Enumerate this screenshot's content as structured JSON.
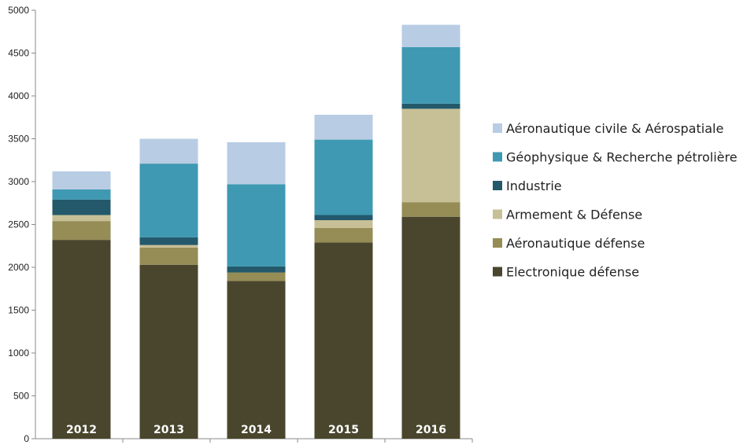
{
  "chart_data": {
    "type": "bar",
    "stacked": true,
    "categories": [
      "2012",
      "2013",
      "2014",
      "2015",
      "2016"
    ],
    "ylim": [
      0,
      5000
    ],
    "yticks": [
      "0",
      "500",
      "1000",
      "1500",
      "2000",
      "2500",
      "3000",
      "3500",
      "4000",
      "4500",
      "5000"
    ],
    "grid": false,
    "legend_position": "right",
    "category_labels_inside_bars": true,
    "series": [
      {
        "name": "Electronique défense",
        "color": "#4A462D",
        "values": [
          2320,
          2030,
          1840,
          2290,
          2590
        ]
      },
      {
        "name": "Aéronautique défense",
        "color": "#958C56",
        "values": [
          220,
          200,
          100,
          170,
          170
        ]
      },
      {
        "name": "Armement & Défense",
        "color": "#C7BF96",
        "values": [
          70,
          30,
          0,
          90,
          1090
        ]
      },
      {
        "name": "Industrie",
        "color": "#23596B",
        "values": [
          180,
          90,
          70,
          60,
          60
        ]
      },
      {
        "name": "Géophysique & Recherche pétrolière",
        "color": "#3F99B2",
        "values": [
          120,
          860,
          960,
          880,
          660
        ]
      },
      {
        "name": "Aéronautique civile & Aérospatiale",
        "color": "#B8CCE4",
        "values": [
          210,
          290,
          490,
          290,
          260
        ]
      }
    ],
    "legend_order": [
      5,
      4,
      3,
      2,
      1,
      0
    ]
  }
}
